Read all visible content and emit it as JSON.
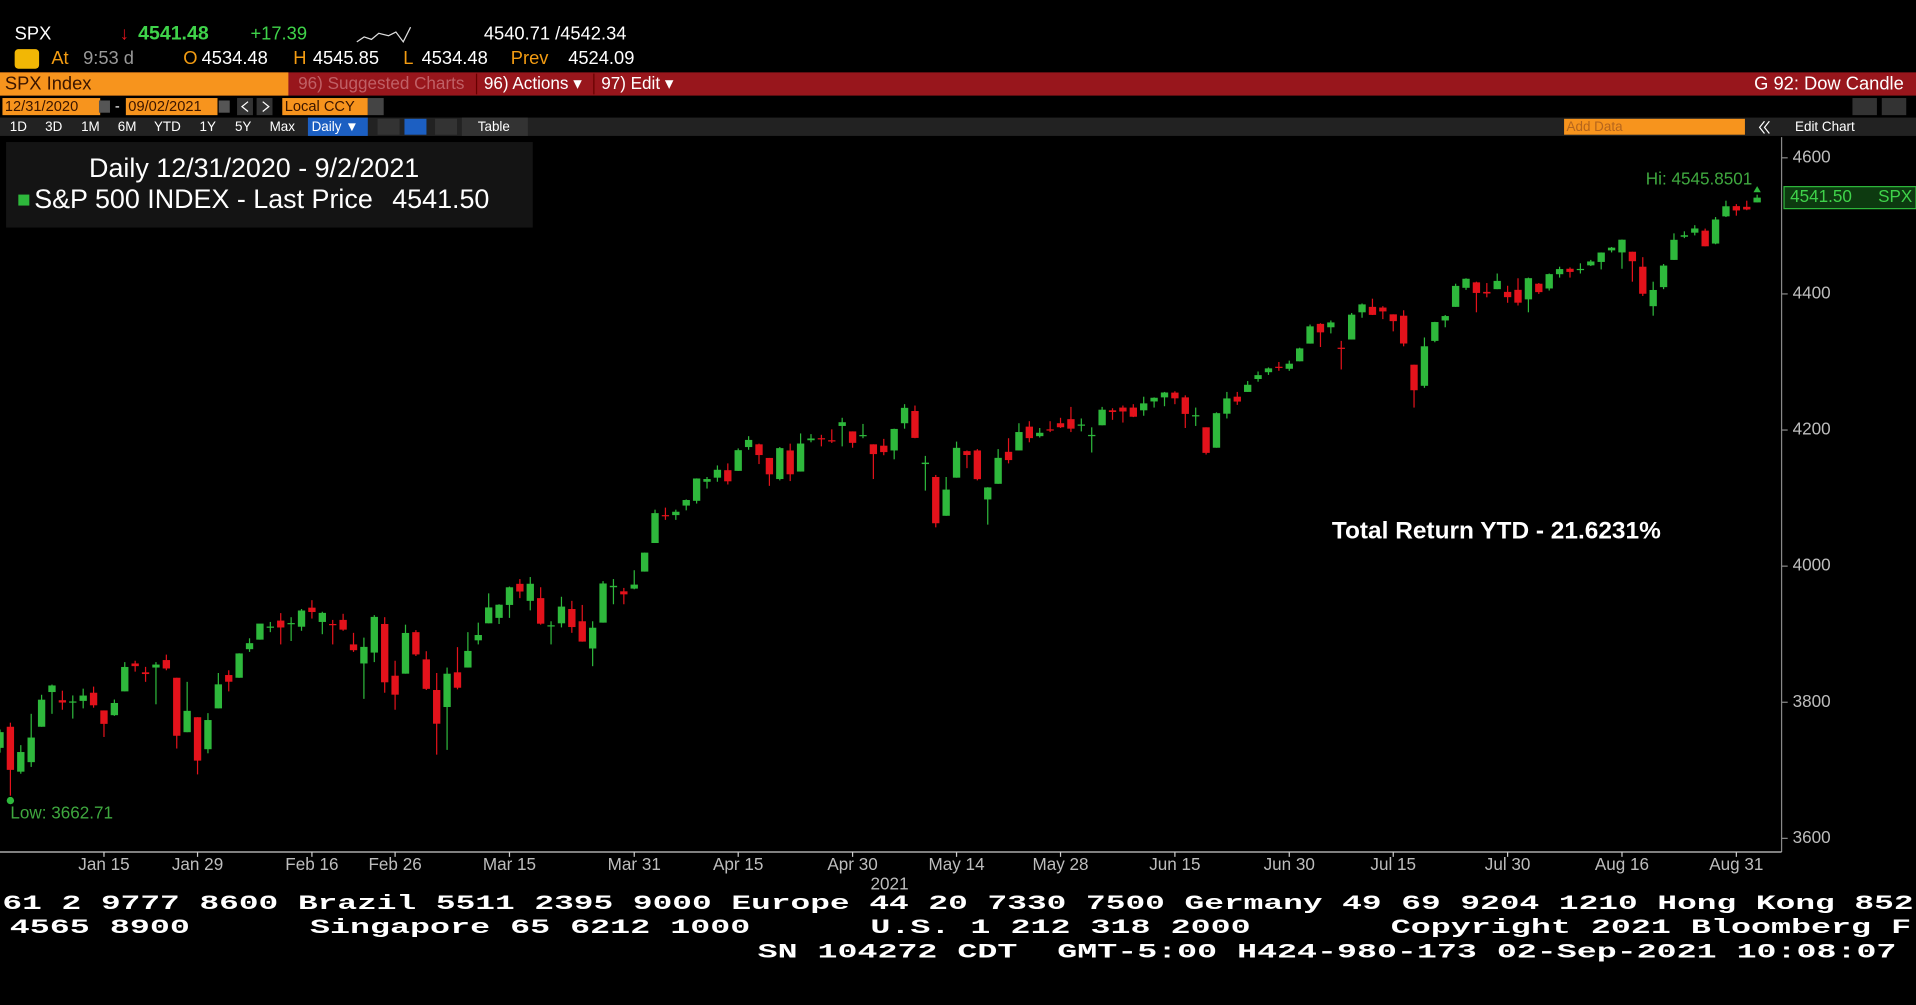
{
  "quote": {
    "ticker": "SPX",
    "arrow": "↓",
    "last": "4541.48",
    "change": "+17.39",
    "bid_ask": "4540.71 /4542.34",
    "time_label": "At",
    "time": "9:53 d",
    "open_label": "O",
    "open": "4534.48",
    "high_label": "H",
    "high": "4545.85",
    "low_label": "L",
    "low": "4534.48",
    "prev_label": "Prev",
    "prev": "4524.09"
  },
  "toolbar": {
    "security": "SPX Index",
    "menu": [
      "96) Suggested Charts",
      "96) Actions ▾",
      "97) Edit ▾"
    ],
    "chart_name": "G 92: Dow Candle",
    "start_date": "12/31/2020",
    "date_sep": "-",
    "end_date": "09/02/2021",
    "currency": "Local CCY",
    "periods": [
      "1D",
      "3D",
      "1M",
      "6M",
      "YTD",
      "1Y",
      "5Y",
      "Max"
    ],
    "frequency": "Daily ▼",
    "table": "Table",
    "add_data": "Add Data",
    "edit_chart": "Edit Chart"
  },
  "chart_data": {
    "type": "candlestick",
    "legend_title": "Daily 12/31/2020 - 9/2/2021",
    "last_price": {
      "value": 4541.5,
      "label": "4541.50"
    },
    "hi_label": "Hi: 4545.8501",
    "low_label": "Low: 3662.71",
    "annotation": "Total Return YTD - 21.6231%",
    "x_year_label": "2021",
    "up_color": "#2eb83c",
    "down_color": "#e3121b",
    "ylim": [
      3580,
      4625
    ],
    "yticks": [
      3600,
      3800,
      4000,
      4200,
      4400,
      4600
    ],
    "categories": [
      null,
      null,
      null,
      null,
      null,
      null,
      null,
      null,
      null,
      null,
      "Jan 15",
      null,
      null,
      null,
      null,
      null,
      null,
      null,
      null,
      "Jan 29",
      null,
      null,
      null,
      null,
      null,
      null,
      null,
      null,
      null,
      null,
      "Feb 16",
      null,
      null,
      null,
      null,
      null,
      null,
      null,
      "Feb 26",
      null,
      null,
      null,
      null,
      null,
      null,
      null,
      null,
      null,
      null,
      "Mar 15",
      null,
      null,
      null,
      null,
      null,
      null,
      null,
      null,
      null,
      null,
      null,
      "Mar 31",
      null,
      null,
      null,
      null,
      null,
      null,
      null,
      null,
      null,
      "Apr 15",
      null,
      null,
      null,
      null,
      null,
      null,
      null,
      null,
      null,
      null,
      "Apr 30",
      null,
      null,
      null,
      null,
      null,
      null,
      null,
      null,
      null,
      "May 14",
      null,
      null,
      null,
      null,
      null,
      null,
      null,
      null,
      null,
      "May 28",
      null,
      null,
      null,
      null,
      null,
      null,
      null,
      null,
      null,
      null,
      "Jun 15",
      null,
      null,
      null,
      null,
      null,
      null,
      null,
      null,
      null,
      null,
      "Jun 30",
      null,
      null,
      null,
      null,
      null,
      null,
      null,
      null,
      null,
      "Jul 15",
      null,
      null,
      null,
      null,
      null,
      null,
      null,
      null,
      null,
      null,
      "Jul 30",
      null,
      null,
      null,
      null,
      null,
      null,
      null,
      null,
      null,
      null,
      "Aug 16",
      null,
      null,
      null,
      null,
      null,
      null,
      null,
      null,
      null,
      null,
      "Aug 31",
      null,
      null
    ],
    "series": [
      {
        "name": "S&P 500 INDEX - Last Price",
        "open": [
          3733,
          3764,
          3698,
          3712,
          3764,
          3815,
          3803,
          3801,
          3802,
          3814,
          3788,
          3781,
          3816,
          3857,
          3844,
          3851,
          3862,
          3836,
          3756,
          3778,
          3731,
          3791,
          3840,
          3836,
          3878,
          3892,
          3910,
          3920,
          3916,
          3911,
          3939,
          3918,
          3915,
          3921,
          3885,
          3857,
          3873,
          3915,
          3839,
          3842,
          3903,
          3863,
          3818,
          3793,
          3844,
          3851,
          3891,
          3916,
          3924,
          3943,
          3974,
          3949,
          3953,
          3913,
          3916,
          3937,
          3919,
          3879,
          3917,
          3969,
          3963,
          3967,
          3992,
          4034,
          4075,
          4075,
          4089,
          4096,
          4124,
          4130,
          4141,
          4140,
          4175,
          4179,
          4159,
          4128,
          4170,
          4139,
          4185,
          4188,
          4185,
          4206,
          4198,
          4191,
          4179,
          4177,
          4170,
          4210,
          4228,
          4150,
          4131,
          4074,
          4130,
          4169,
          4170,
          4098,
          4121,
          4168,
          4170,
          4205,
          4191,
          4201,
          4210,
          4216,
          4207,
          4191,
          4207,
          4229,
          4233,
          4233,
          4229,
          4242,
          4248,
          4255,
          4248,
          4220,
          4204,
          4174,
          4224,
          4249,
          4256,
          4275,
          4285,
          4293,
          4290,
          4301,
          4327,
          4356,
          4351,
          4321,
          4333,
          4373,
          4381,
          4380,
          4370,
          4368,
          4296,
          4265,
          4331,
          4361,
          4381,
          4409,
          4417,
          4403,
          4407,
          4403,
          4406,
          4392,
          4415,
          4408,
          4429,
          4437,
          4435,
          4442,
          4447,
          4464,
          4461,
          4462,
          4440,
          4382,
          4410,
          4450,
          4484,
          4490,
          4493,
          4474,
          4514,
          4529,
          4528,
          4534.48
        ],
        "high": [
          3760,
          3770,
          3737,
          3783,
          3811,
          3826,
          3817,
          3810,
          3820,
          3823,
          3788,
          3804,
          3859,
          3861,
          3852,
          3859,
          3870,
          3836,
          3830,
          3778,
          3784,
          3843,
          3847,
          3872,
          3894,
          3915,
          3918,
          3931,
          3925,
          3937,
          3950,
          3933,
          3921,
          3930,
          3902,
          3895,
          3928,
          3925,
          3861,
          3914,
          3906,
          3875,
          3843,
          3851,
          3881,
          3903,
          3917,
          3960,
          3944,
          3970,
          3981,
          3984,
          3969,
          3919,
          3955,
          3949,
          3943,
          3919,
          3978,
          3981,
          3968,
          3994,
          4020,
          4083,
          4086,
          4083,
          4098,
          4129,
          4131,
          4148,
          4151,
          4173,
          4191,
          4180,
          4159,
          4175,
          4180,
          4195,
          4194,
          4193,
          4201,
          4218,
          4198,
          4209,
          4179,
          4187,
          4202,
          4238,
          4236,
          4162,
          4134,
          4131,
          4183,
          4170,
          4172,
          4116,
          4172,
          4188,
          4210,
          4213,
          4203,
          4213,
          4218,
          4234,
          4217,
          4204,
          4234,
          4232,
          4236,
          4238,
          4249,
          4248,
          4256,
          4257,
          4251,
          4233,
          4204,
          4226,
          4256,
          4256,
          4272,
          4286,
          4292,
          4300,
          4302,
          4321,
          4355,
          4357,
          4361,
          4331,
          4372,
          4386,
          4393,
          4382,
          4370,
          4376,
          4296,
          4336,
          4359,
          4369,
          4415,
          4423,
          4418,
          4416,
          4430,
          4412,
          4423,
          4424,
          4416,
          4430,
          4440,
          4439,
          4445,
          4450,
          4461,
          4469,
          4480,
          4462,
          4454,
          4418,
          4444,
          4489,
          4492,
          4501,
          4496,
          4513,
          4537,
          4532,
          4537,
          4545.85
        ],
        "low": [
          3726,
          3662.71,
          3695,
          3705,
          3764,
          3783,
          3789,
          3776,
          3791,
          3792,
          3749,
          3780,
          3816,
          3845,
          3830,
          3797,
          3847,
          3732,
          3756,
          3694,
          3725,
          3791,
          3816,
          3836,
          3874,
          3892,
          3903,
          3885,
          3890,
          3905,
          3923,
          3900,
          3885,
          3905,
          3874,
          3805,
          3859,
          3814,
          3789,
          3842,
          3868,
          3818,
          3723,
          3730,
          3819,
          3851,
          3885,
          3916,
          3915,
          3924,
          3953,
          3935,
          3914,
          3885,
          3910,
          3902,
          3889,
          3853,
          3917,
          3944,
          3944,
          3966,
          3992,
          4034,
          4068,
          4068,
          4082,
          4092,
          4114,
          4124,
          4120,
          4140,
          4171,
          4150,
          4118,
          4126,
          4125,
          4139,
          4182,
          4176,
          4181,
          4176,
          4174,
          4188,
          4128,
          4163,
          4157,
          4202,
          4188,
          4111,
          4057,
          4074,
          4130,
          4144,
          4126,
          4061,
          4121,
          4151,
          4170,
          4182,
          4189,
          4197,
          4203,
          4197,
          4198,
          4167,
          4207,
          4215,
          4211,
          4219,
          4221,
          4233,
          4235,
          4238,
          4203,
          4206,
          4164,
          4174,
          4217,
          4237,
          4256,
          4271,
          4281,
          4287,
          4287,
          4301,
          4327,
          4322,
          4342,
          4289,
          4333,
          4365,
          4369,
          4363,
          4345,
          4323,
          4233,
          4262,
          4329,
          4351,
          4381,
          4406,
          4373,
          4395,
          4407,
          4387,
          4383,
          4373,
          4400,
          4405,
          4424,
          4424,
          4430,
          4441,
          4436,
          4461,
          4437,
          4418,
          4397,
          4368,
          4407,
          4450,
          4482,
          4486,
          4470,
          4473,
          4513,
          4515,
          4523,
          4534.48
        ],
        "close": [
          3756.07,
          3700.65,
          3726.86,
          3748.14,
          3803.79,
          3824.68,
          3799.61,
          3801.19,
          3809.84,
          3795.54,
          3768.25,
          3798.91,
          3851.85,
          3853.07,
          3841.47,
          3855.36,
          3849.62,
          3750.77,
          3787.38,
          3714.24,
          3773.86,
          3826.31,
          3830.17,
          3871.74,
          3886.83,
          3915.59,
          3911.23,
          3909.88,
          3916.38,
          3934.83,
          3932.59,
          3931.33,
          3913.97,
          3906.71,
          3876.5,
          3881.37,
          3925.43,
          3829.34,
          3811.15,
          3901.82,
          3870.29,
          3819.72,
          3768.47,
          3841.94,
          3821.35,
          3875.44,
          3898.81,
          3939.34,
          3943.34,
          3968.94,
          3962.71,
          3974.12,
          3915.46,
          3913.1,
          3940.59,
          3910.52,
          3889.14,
          3909.52,
          3974.54,
          3971.09,
          3958.55,
          3972.89,
          4019.87,
          4077.91,
          4073.94,
          4079.95,
          4097.17,
          4128.8,
          4127.99,
          4141.59,
          4124.66,
          4170.42,
          4185.47,
          4163.26,
          4134.94,
          4173.42,
          4134.98,
          4180.17,
          4187.62,
          4186.72,
          4183.18,
          4211.47,
          4181.17,
          4192.66,
          4164.66,
          4167.59,
          4201.62,
          4232.6,
          4188.43,
          4152.1,
          4063.04,
          4112.5,
          4173.85,
          4163.29,
          4127.83,
          4115.68,
          4159.12,
          4155.86,
          4197.05,
          4188.13,
          4195.99,
          4200.88,
          4204.11,
          4202.04,
          4208.12,
          4192.85,
          4229.89,
          4226.52,
          4227.26,
          4219.55,
          4239.18,
          4247.44,
          4255.15,
          4246.59,
          4223.7,
          4221.86,
          4166.45,
          4224.79,
          4246.44,
          4241.84,
          4266.49,
          4280.7,
          4290.61,
          4291.8,
          4297.5,
          4319.94,
          4352.34,
          4343.54,
          4358.13,
          4320.82,
          4369.55,
          4384.63,
          4369.21,
          4374.3,
          4360.03,
          4327.16,
          4258.49,
          4323.06,
          4358.69,
          4367.48,
          4411.79,
          4422.3,
          4401.46,
          4400.64,
          4419.15,
          4395.26,
          4387.16,
          4423.15,
          4402.66,
          4429.1,
          4436.52,
          4432.35,
          4436.75,
          4447.7,
          4460.83,
          4468,
          4479.71,
          4448.08,
          4400.27,
          4405.8,
          4441.67,
          4479.53,
          4486.23,
          4496.19,
          4470,
          4509.37,
          4528.79,
          4522.68,
          4524.09,
          4541.5
        ]
      }
    ]
  },
  "footer": {
    "lines": [
      "61 2 9777 8600 Brazil 5511 2395 9000 Europe 44 20 7330 7500 Germany 49 69 9204 1210 Hong Kong 852",
      "4565 8900      Singapore 65 6212 1000      U.S. 1 212 318 2000       Copyright 2021 Bloomberg F",
      "SN 104272 CDT  GMT-5:00 H424-980-173 02-Sep-2021 10:08:07"
    ]
  }
}
